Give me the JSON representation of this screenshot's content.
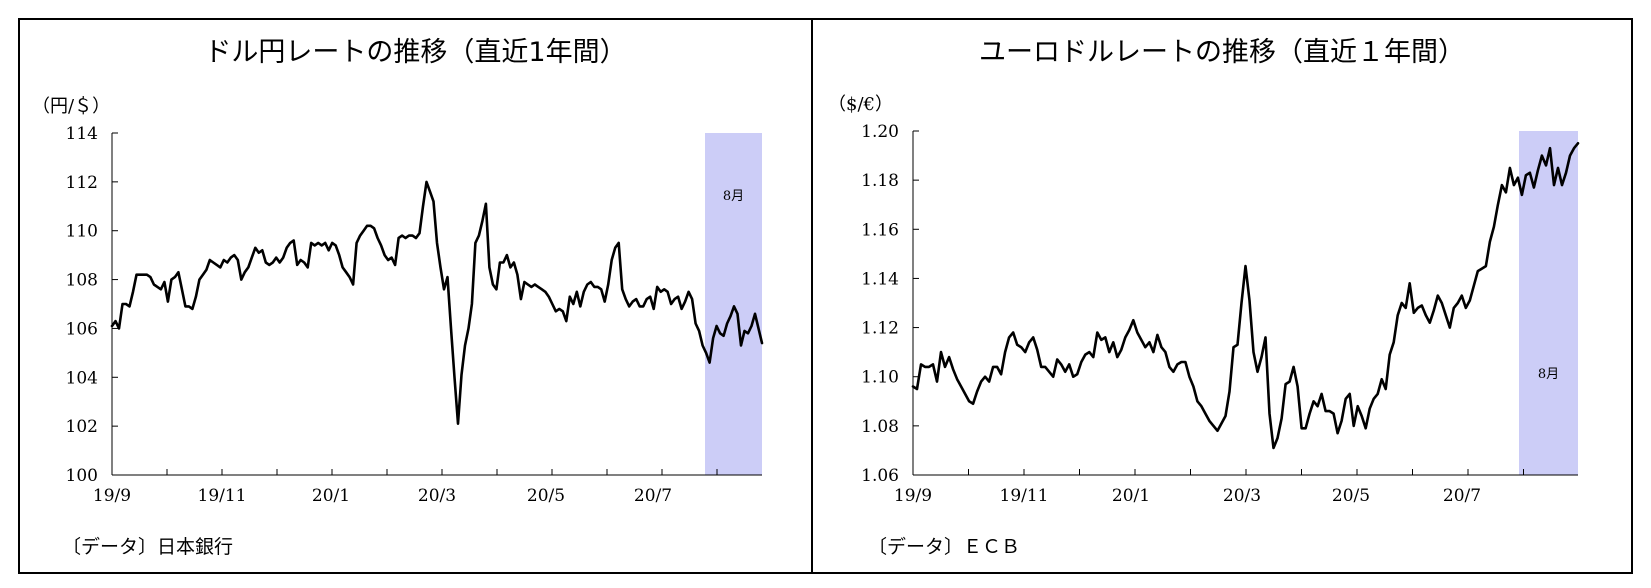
{
  "chart_data": [
    {
      "type": "line",
      "title": "ドル円レートの推移（直近1年間）",
      "unit_label": "（円/＄）",
      "source": "〔データ〕日本銀行",
      "x_tick_labels": [
        "19/9",
        "19/11",
        "20/1",
        "20/3",
        "20/5",
        "20/7"
      ],
      "ylim": [
        100,
        114
      ],
      "y_ticks": [
        100,
        102,
        104,
        106,
        108,
        110,
        112,
        114
      ],
      "y_tick_labels": [
        "100",
        "102",
        "104",
        "106",
        "108",
        "110",
        "112",
        "114"
      ],
      "highlight": {
        "label": "8月",
        "color": "#cccdf7"
      },
      "series": [
        {
          "values": [
            106.1,
            106.3,
            106.0,
            107.0,
            107.0,
            106.9,
            107.5,
            108.2,
            108.2,
            108.2,
            108.2,
            108.1,
            107.8,
            107.7,
            107.6,
            107.9,
            107.1,
            108.0,
            108.1,
            108.3,
            107.6,
            106.9,
            106.9,
            106.8,
            107.3,
            108.0,
            108.2,
            108.4,
            108.8,
            108.7,
            108.6,
            108.5,
            108.8,
            108.7,
            108.9,
            109.0,
            108.8,
            108.0,
            108.3,
            108.5,
            108.9,
            109.3,
            109.1,
            109.2,
            108.7,
            108.6,
            108.7,
            108.9,
            108.7,
            108.9,
            109.3,
            109.5,
            109.6,
            108.6,
            108.8,
            108.7,
            108.5,
            109.5,
            109.4,
            109.5,
            109.4,
            109.5,
            109.2,
            109.5,
            109.4,
            109.0,
            108.5,
            108.3,
            108.1,
            107.8,
            109.5,
            109.8,
            110.0,
            110.2,
            110.2,
            110.1,
            109.7,
            109.4,
            109.0,
            108.8,
            108.9,
            108.6,
            109.7,
            109.8,
            109.7,
            109.8,
            109.8,
            109.7,
            109.9,
            111.0,
            112.0,
            111.6,
            111.2,
            109.5,
            108.5,
            107.6,
            108.1,
            106.0,
            104.0,
            102.1,
            104.1,
            105.3,
            106.0,
            107.0,
            109.5,
            109.8,
            110.4,
            111.1,
            108.5,
            107.8,
            107.6,
            108.7,
            108.7,
            109.0,
            108.5,
            108.7,
            108.2,
            107.2,
            107.9,
            107.8,
            107.7,
            107.8,
            107.7,
            107.6,
            107.5,
            107.3,
            107.0,
            106.7,
            106.8,
            106.7,
            106.3,
            107.3,
            107.0,
            107.5,
            106.9,
            107.5,
            107.8,
            107.9,
            107.7,
            107.7,
            107.6,
            107.1,
            107.8,
            108.8,
            109.3,
            109.5,
            107.6,
            107.2,
            106.9,
            107.1,
            107.2,
            106.9,
            106.9,
            107.2,
            107.3,
            106.8,
            107.7,
            107.5,
            107.6,
            107.5,
            107.0,
            107.2,
            107.3,
            106.8,
            107.1,
            107.5,
            107.2,
            106.2,
            105.9,
            105.3,
            105.0,
            104.6,
            105.6,
            106.1,
            105.8,
            105.7,
            106.2,
            106.5,
            106.9,
            106.6,
            105.3,
            105.9,
            105.8,
            106.1,
            106.6,
            106.0,
            105.4
          ]
        }
      ]
    },
    {
      "type": "line",
      "title": "ユーロドルレートの推移（直近１年間）",
      "unit_label": "（$/€）",
      "source": "〔データ〕ＥＣＢ",
      "x_tick_labels": [
        "19/9",
        "19/11",
        "20/1",
        "20/3",
        "20/5",
        "20/7"
      ],
      "ylim": [
        1.06,
        1.2
      ],
      "y_ticks": [
        1.06,
        1.08,
        1.1,
        1.12,
        1.14,
        1.16,
        1.18,
        1.2
      ],
      "y_tick_labels": [
        "1.06",
        "1.08",
        "1.10",
        "1.12",
        "1.14",
        "1.16",
        "1.18",
        "1.20"
      ],
      "highlight": {
        "label": "8月",
        "color": "#cccdf7"
      },
      "series": [
        {
          "values": [
            1.096,
            1.095,
            1.105,
            1.104,
            1.104,
            1.105,
            1.098,
            1.11,
            1.104,
            1.108,
            1.103,
            1.099,
            1.096,
            1.093,
            1.09,
            1.089,
            1.094,
            1.098,
            1.1,
            1.098,
            1.104,
            1.104,
            1.101,
            1.11,
            1.116,
            1.118,
            1.113,
            1.112,
            1.11,
            1.114,
            1.116,
            1.111,
            1.104,
            1.104,
            1.102,
            1.1,
            1.107,
            1.105,
            1.102,
            1.105,
            1.1,
            1.101,
            1.106,
            1.109,
            1.11,
            1.108,
            1.118,
            1.115,
            1.116,
            1.11,
            1.114,
            1.108,
            1.111,
            1.116,
            1.119,
            1.123,
            1.118,
            1.115,
            1.112,
            1.114,
            1.11,
            1.117,
            1.112,
            1.11,
            1.104,
            1.102,
            1.105,
            1.106,
            1.106,
            1.1,
            1.096,
            1.09,
            1.088,
            1.085,
            1.082,
            1.08,
            1.078,
            1.081,
            1.084,
            1.094,
            1.112,
            1.113,
            1.13,
            1.145,
            1.131,
            1.11,
            1.102,
            1.108,
            1.116,
            1.085,
            1.071,
            1.075,
            1.083,
            1.097,
            1.098,
            1.104,
            1.096,
            1.079,
            1.079,
            1.085,
            1.09,
            1.088,
            1.093,
            1.086,
            1.086,
            1.085,
            1.077,
            1.082,
            1.091,
            1.093,
            1.08,
            1.088,
            1.084,
            1.079,
            1.087,
            1.091,
            1.093,
            1.099,
            1.095,
            1.109,
            1.114,
            1.125,
            1.13,
            1.128,
            1.138,
            1.126,
            1.128,
            1.129,
            1.125,
            1.122,
            1.127,
            1.133,
            1.13,
            1.125,
            1.12,
            1.128,
            1.13,
            1.133,
            1.128,
            1.131,
            1.137,
            1.143,
            1.144,
            1.145,
            1.155,
            1.161,
            1.17,
            1.178,
            1.175,
            1.185,
            1.178,
            1.181,
            1.174,
            1.182,
            1.183,
            1.177,
            1.184,
            1.19,
            1.186,
            1.193,
            1.178,
            1.185,
            1.178,
            1.183,
            1.19,
            1.193,
            1.195
          ]
        }
      ]
    }
  ]
}
